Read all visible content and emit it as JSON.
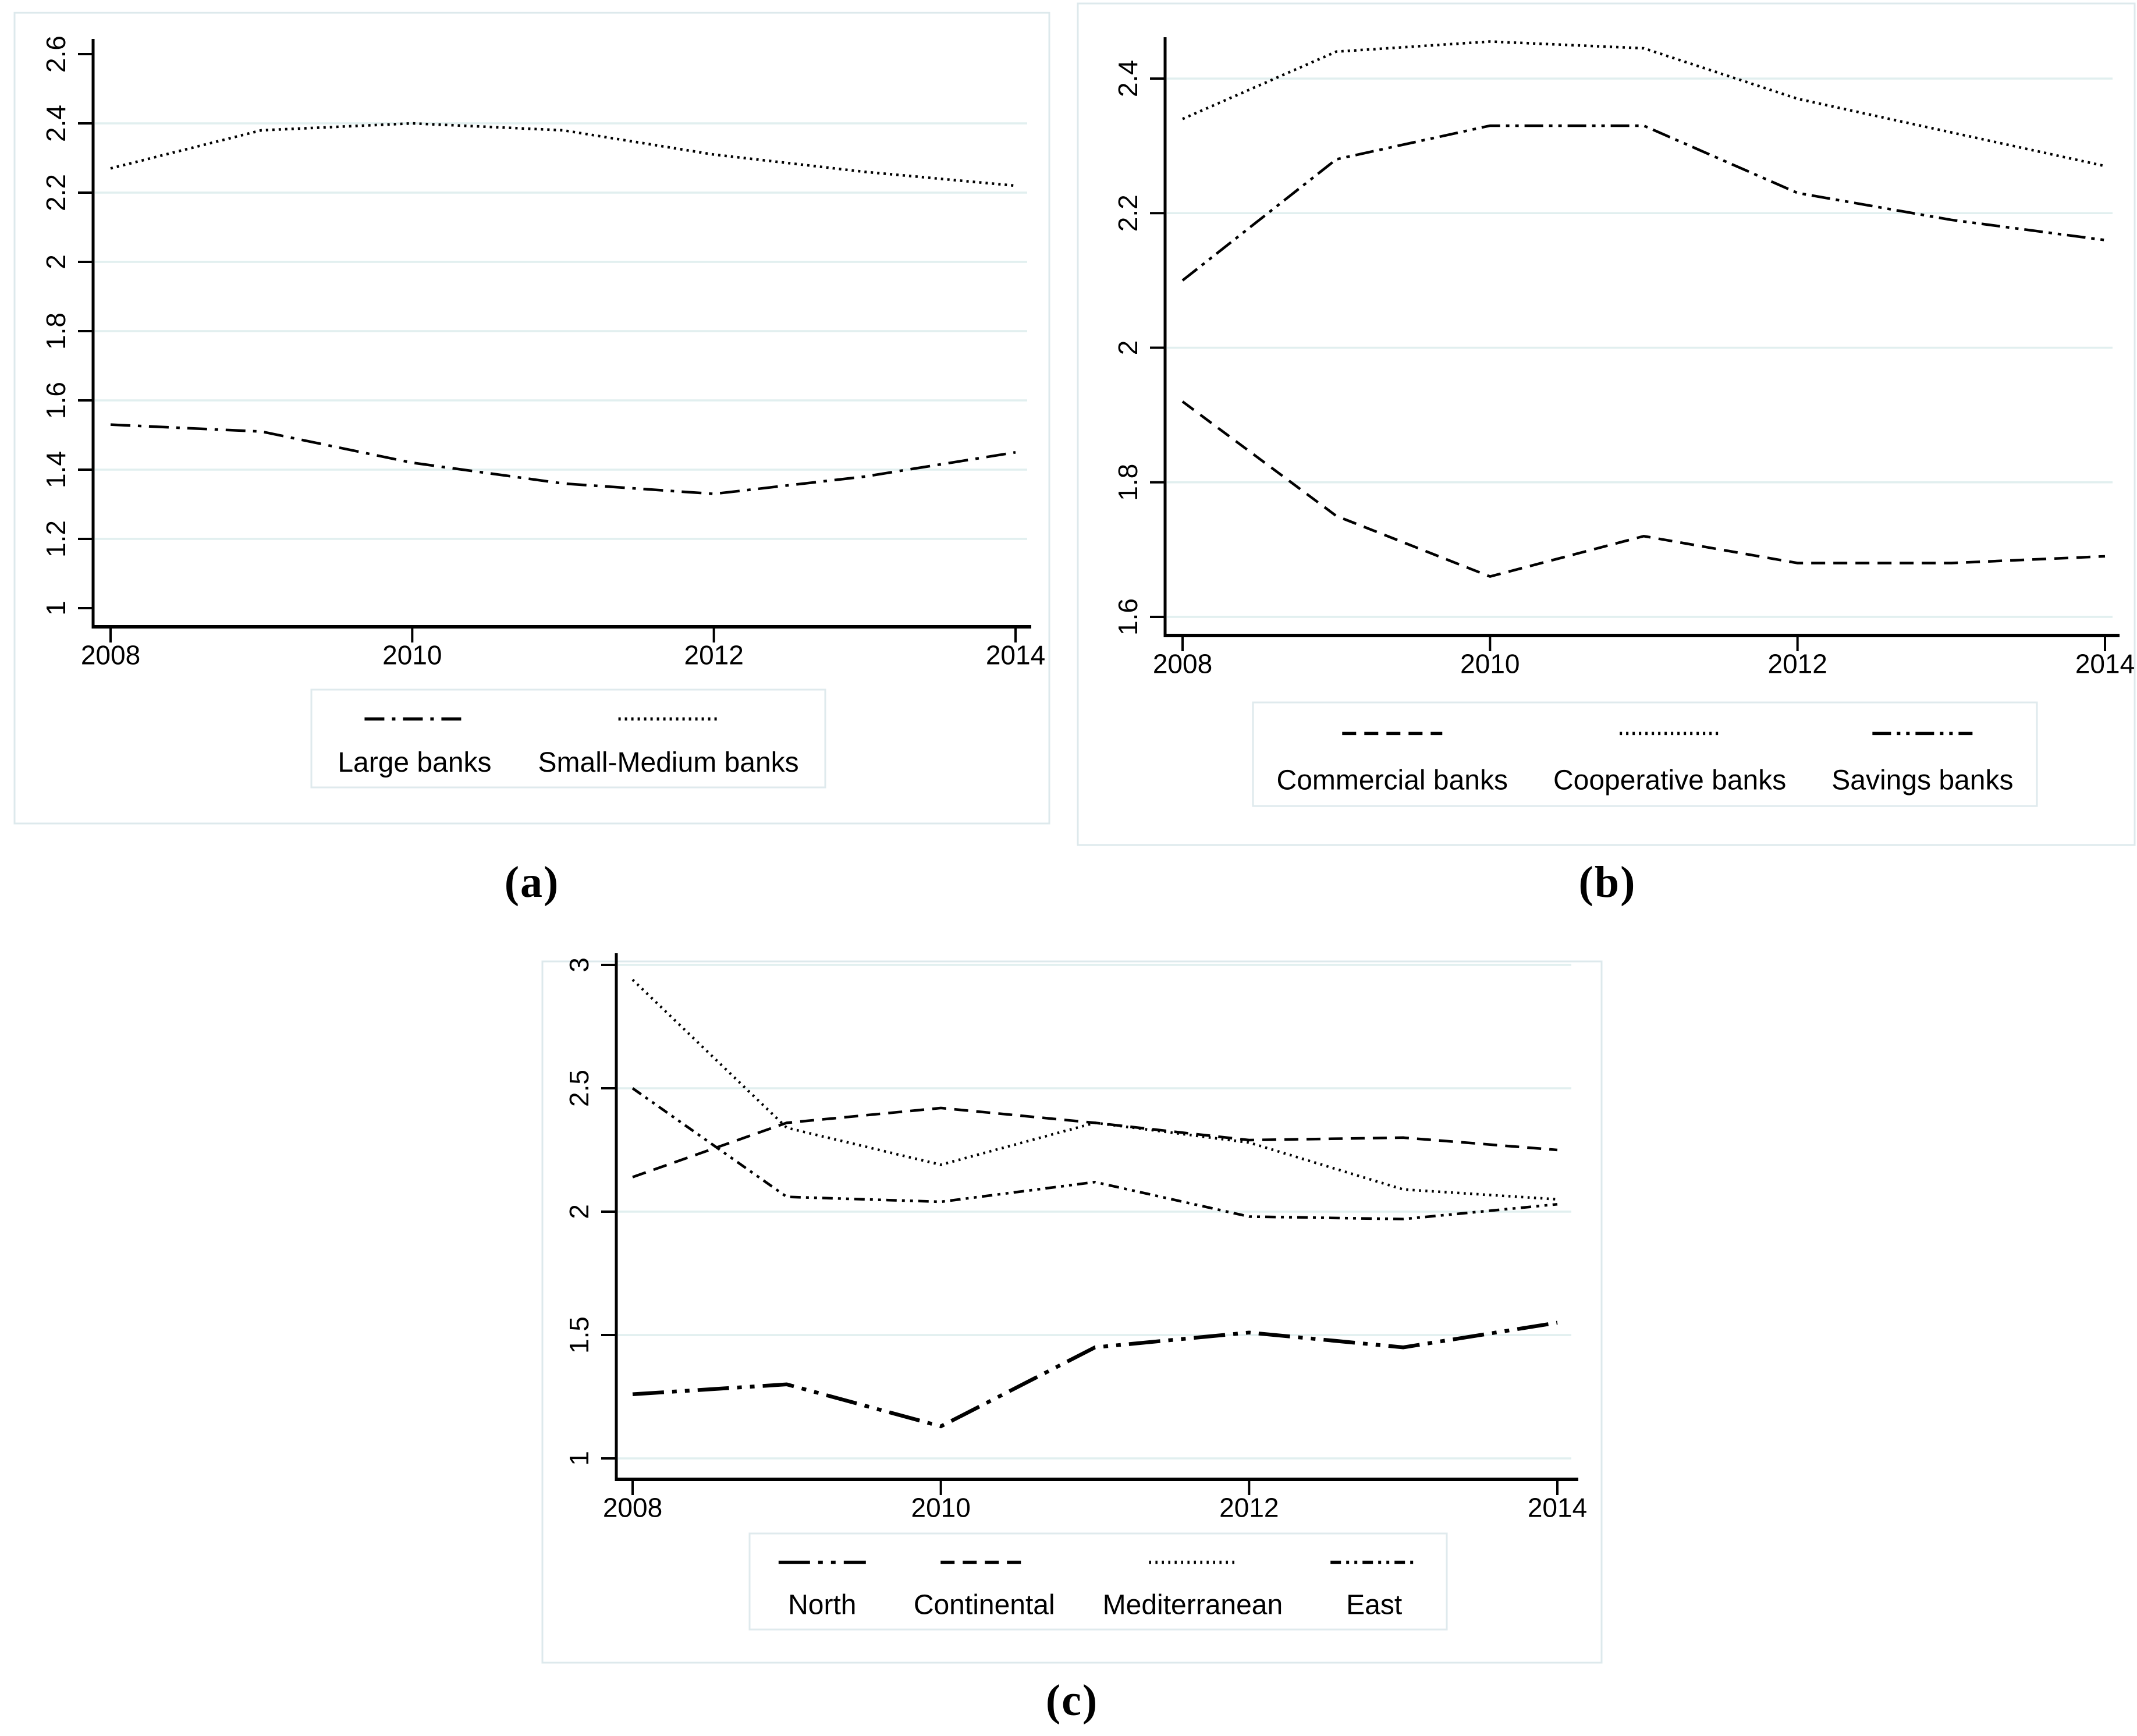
{
  "page": {
    "background": "#ffffff"
  },
  "colors": {
    "line": "#000000",
    "text": "#000000",
    "grid": "#e1efef",
    "figure_border": "#dde9ec",
    "legend_border": "#dfeaed"
  },
  "chart_data": [
    {
      "type": "line",
      "panel_label": "(a)",
      "x": [
        2008,
        2009,
        2010,
        2011,
        2012,
        2013,
        2014
      ],
      "xticks": {
        "values": [
          2008,
          2010,
          2012,
          2014
        ],
        "labels": [
          "2008",
          "2010",
          "2012",
          "2014"
        ]
      },
      "yticks": {
        "values": [
          1,
          1.2,
          1.4,
          1.6,
          1.8,
          2,
          2.2,
          2.4,
          2.6
        ],
        "labels": [
          "1",
          "1.2",
          "1.4",
          "1.6",
          "1.8",
          "2",
          "2.2",
          "2.4",
          "2.6"
        ],
        "grid_values": [
          1.2,
          1.4,
          1.6,
          1.8,
          2,
          2.2,
          2.4
        ]
      },
      "ylim": [
        1,
        2.6
      ],
      "xlabel": "",
      "ylabel": "",
      "grid": "on",
      "legend_position": "bottom",
      "series": [
        {
          "name": "Large banks",
          "style": "dash-dot",
          "weight": "normal",
          "values": [
            1.53,
            1.51,
            1.42,
            1.36,
            1.33,
            1.38,
            1.45
          ]
        },
        {
          "name": "Small-Medium banks",
          "style": "dotted",
          "weight": "normal",
          "values": [
            2.27,
            2.38,
            2.4,
            2.38,
            2.31,
            2.26,
            2.22
          ]
        }
      ]
    },
    {
      "type": "line",
      "panel_label": "(b)",
      "x": [
        2008,
        2009,
        2010,
        2011,
        2012,
        2013,
        2014
      ],
      "xticks": {
        "values": [
          2008,
          2010,
          2012,
          2014
        ],
        "labels": [
          "2008",
          "2010",
          "2012",
          "2014"
        ]
      },
      "yticks": {
        "values": [
          1.6,
          1.8,
          2,
          2.2,
          2.4
        ],
        "labels": [
          "1.6",
          "1.8",
          "2",
          "2.2",
          "2.4"
        ],
        "grid_values": [
          1.6,
          1.8,
          2,
          2.2,
          2.4
        ]
      },
      "ylim": [
        1.55,
        2.47
      ],
      "xlabel": "",
      "ylabel": "",
      "grid": "on",
      "legend_position": "bottom",
      "series": [
        {
          "name": "Commercial banks",
          "style": "dashed",
          "weight": "normal",
          "values": [
            1.92,
            1.75,
            1.66,
            1.72,
            1.68,
            1.68,
            1.69
          ]
        },
        {
          "name": "Cooperative banks",
          "style": "dotted",
          "weight": "normal",
          "values": [
            2.34,
            2.44,
            2.455,
            2.445,
            2.37,
            2.32,
            2.27
          ]
        },
        {
          "name": "Savings banks",
          "style": "dash-dot-dot",
          "weight": "normal",
          "values": [
            2.1,
            2.28,
            2.33,
            2.33,
            2.23,
            2.19,
            2.16
          ]
        }
      ]
    },
    {
      "type": "line",
      "panel_label": "(c)",
      "x": [
        2008,
        2009,
        2010,
        2011,
        2012,
        2013,
        2014
      ],
      "xticks": {
        "values": [
          2008,
          2010,
          2012,
          2014
        ],
        "labels": [
          "2008",
          "2010",
          "2012",
          "2014"
        ]
      },
      "yticks": {
        "values": [
          1,
          1.5,
          2,
          2.5,
          3
        ],
        "labels": [
          "1",
          "1.5",
          "2",
          "2.5",
          "3"
        ],
        "grid_values": [
          1,
          1.5,
          2,
          2.5,
          3
        ]
      },
      "ylim": [
        1,
        3.05
      ],
      "xlabel": "",
      "ylabel": "",
      "grid": "on",
      "legend_position": "bottom",
      "series": [
        {
          "name": "North",
          "style": "long-dash-dot-dot",
          "weight": "thick",
          "values": [
            1.26,
            1.3,
            1.13,
            1.45,
            1.51,
            1.45,
            1.55
          ]
        },
        {
          "name": "Continental",
          "style": "dashed",
          "weight": "normal",
          "values": [
            2.14,
            2.36,
            2.42,
            2.36,
            2.29,
            2.3,
            2.25
          ]
        },
        {
          "name": "Mediterranean",
          "style": "fine-dots",
          "weight": "normal",
          "values": [
            2.94,
            2.34,
            2.19,
            2.36,
            2.28,
            2.09,
            2.05
          ]
        },
        {
          "name": "East",
          "style": "short-dash-dot-dot",
          "weight": "normal",
          "values": [
            2.5,
            2.06,
            2.04,
            2.12,
            1.98,
            1.97,
            2.03
          ]
        }
      ]
    }
  ]
}
